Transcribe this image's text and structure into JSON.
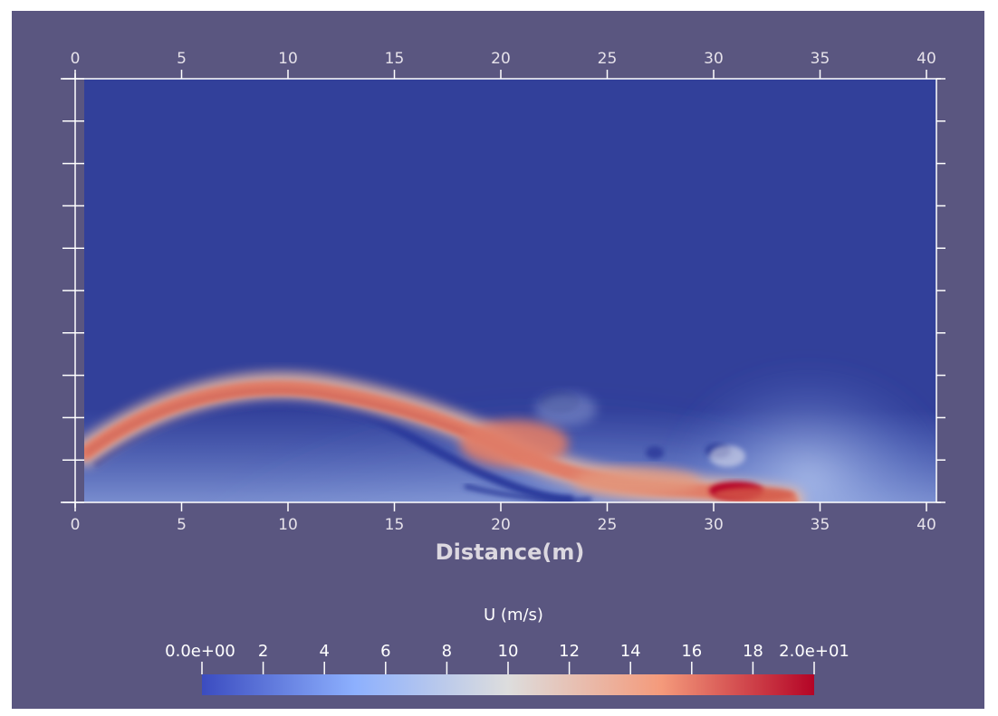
{
  "chart_data": {
    "type": "heatmap",
    "title": "",
    "xlabel": "Distance(m)",
    "ylabel": "",
    "x_ticks": [
      0,
      5,
      10,
      15,
      20,
      25,
      30,
      35,
      40
    ],
    "xlim": [
      0,
      40
    ],
    "y_tick_count": 11,
    "grid": false,
    "field": "U (m/s)",
    "colormap": "cool-to-warm",
    "colormap_colors": [
      "#3b4cc0",
      "#8db0fe",
      "#dddddd",
      "#f49a7b",
      "#b40426"
    ],
    "colorbar": {
      "title": "U (m/s)",
      "range": [
        0,
        20
      ],
      "tick_labels": [
        "0.0e+00",
        "2",
        "4",
        "6",
        "8",
        "10",
        "12",
        "14",
        "16",
        "18",
        "2.0e+01"
      ],
      "tick_values": [
        0,
        2,
        4,
        6,
        8,
        10,
        12,
        14,
        16,
        18,
        20
      ],
      "placement": "bottom"
    },
    "jet": {
      "description": "high-velocity jet curving from left wall toward floor",
      "path_x": [
        0.3,
        2,
        5,
        8,
        10,
        13,
        16,
        19,
        22,
        25,
        28,
        31,
        33.5
      ],
      "peak_velocity": 20
    }
  },
  "colors": {
    "background": "#5a5680",
    "axis": "#ffffff",
    "tick_label": "#e6e2ea"
  }
}
